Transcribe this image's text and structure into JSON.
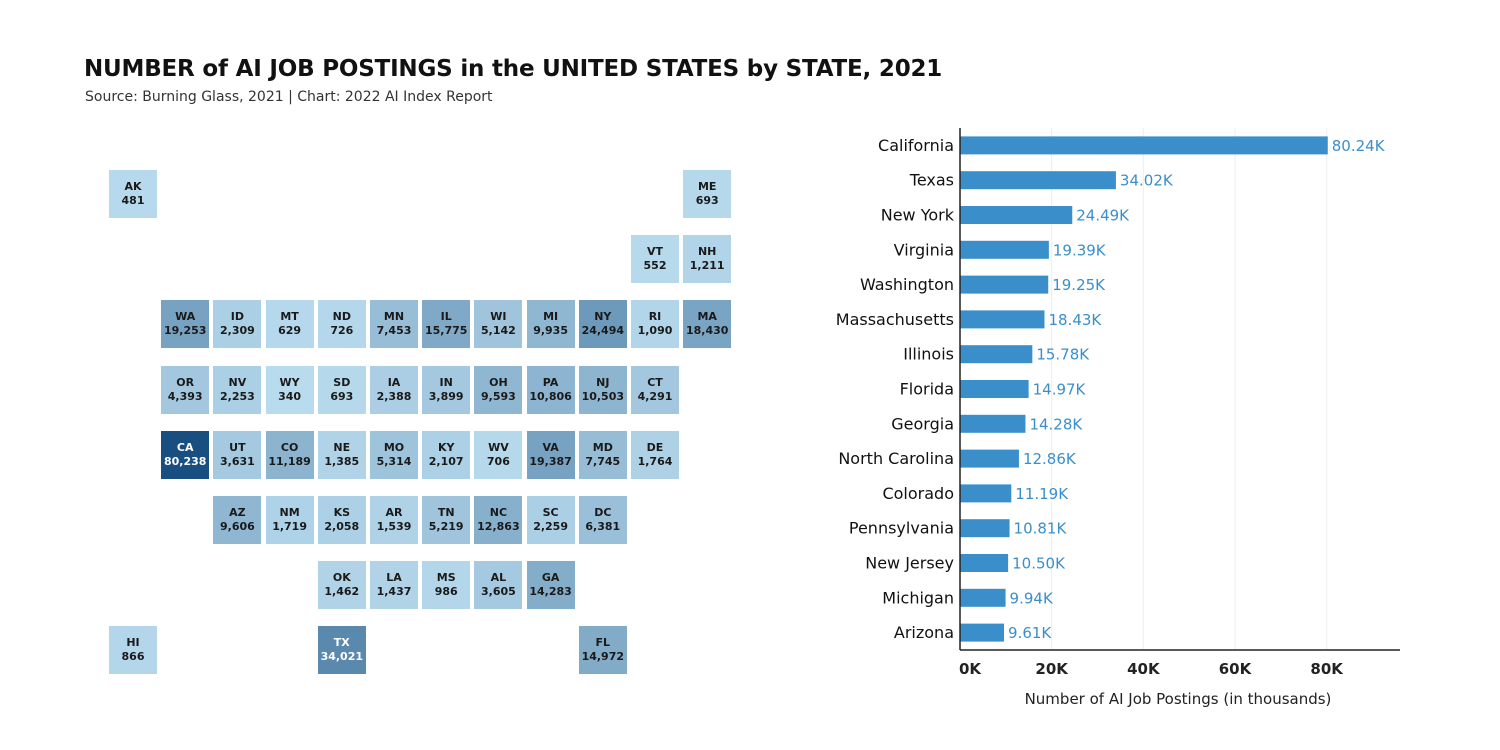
{
  "title": "NUMBER of AI JOB POSTINGS in the UNITED STATES by STATE, 2021",
  "subtitle": "Source: Burning Glass, 2021 | Chart: 2022 AI Index Report",
  "colors": {
    "bar": "#3a8fcb",
    "bar_label": "#3a8fcb",
    "tile_low": "#bfe0f2",
    "tile_high": "#184f80",
    "axis": "#222222",
    "grid": "#eeeeee"
  },
  "tile_map": [
    {
      "abbr": "AK",
      "value": 481,
      "display": "481",
      "row": 0,
      "col": 0
    },
    {
      "abbr": "ME",
      "value": 693,
      "display": "693",
      "row": 0,
      "col": 11
    },
    {
      "abbr": "VT",
      "value": 552,
      "display": "552",
      "row": 1,
      "col": 10
    },
    {
      "abbr": "NH",
      "value": 1211,
      "display": "1,211",
      "row": 1,
      "col": 11
    },
    {
      "abbr": "WA",
      "value": 19253,
      "display": "19,253",
      "row": 2,
      "col": 1
    },
    {
      "abbr": "ID",
      "value": 2309,
      "display": "2,309",
      "row": 2,
      "col": 2
    },
    {
      "abbr": "MT",
      "value": 629,
      "display": "629",
      "row": 2,
      "col": 3
    },
    {
      "abbr": "ND",
      "value": 726,
      "display": "726",
      "row": 2,
      "col": 4
    },
    {
      "abbr": "MN",
      "value": 7453,
      "display": "7,453",
      "row": 2,
      "col": 5
    },
    {
      "abbr": "IL",
      "value": 15775,
      "display": "15,775",
      "row": 2,
      "col": 6
    },
    {
      "abbr": "WI",
      "value": 5142,
      "display": "5,142",
      "row": 2,
      "col": 7
    },
    {
      "abbr": "MI",
      "value": 9935,
      "display": "9,935",
      "row": 2,
      "col": 8
    },
    {
      "abbr": "NY",
      "value": 24494,
      "display": "24,494",
      "row": 2,
      "col": 9
    },
    {
      "abbr": "RI",
      "value": 1090,
      "display": "1,090",
      "row": 2,
      "col": 10
    },
    {
      "abbr": "MA",
      "value": 18430,
      "display": "18,430",
      "row": 2,
      "col": 11
    },
    {
      "abbr": "OR",
      "value": 4393,
      "display": "4,393",
      "row": 3,
      "col": 1
    },
    {
      "abbr": "NV",
      "value": 2253,
      "display": "2,253",
      "row": 3,
      "col": 2
    },
    {
      "abbr": "WY",
      "value": 340,
      "display": "340",
      "row": 3,
      "col": 3
    },
    {
      "abbr": "SD",
      "value": 693,
      "display": "693",
      "row": 3,
      "col": 4
    },
    {
      "abbr": "IA",
      "value": 2388,
      "display": "2,388",
      "row": 3,
      "col": 5
    },
    {
      "abbr": "IN",
      "value": 3899,
      "display": "3,899",
      "row": 3,
      "col": 6
    },
    {
      "abbr": "OH",
      "value": 9593,
      "display": "9,593",
      "row": 3,
      "col": 7
    },
    {
      "abbr": "PA",
      "value": 10806,
      "display": "10,806",
      "row": 3,
      "col": 8
    },
    {
      "abbr": "NJ",
      "value": 10503,
      "display": "10,503",
      "row": 3,
      "col": 9
    },
    {
      "abbr": "CT",
      "value": 4291,
      "display": "4,291",
      "row": 3,
      "col": 10
    },
    {
      "abbr": "CA",
      "value": 80238,
      "display": "80,238",
      "row": 4,
      "col": 1
    },
    {
      "abbr": "UT",
      "value": 3631,
      "display": "3,631",
      "row": 4,
      "col": 2
    },
    {
      "abbr": "CO",
      "value": 11189,
      "display": "11,189",
      "row": 4,
      "col": 3
    },
    {
      "abbr": "NE",
      "value": 1385,
      "display": "1,385",
      "row": 4,
      "col": 4
    },
    {
      "abbr": "MO",
      "value": 5314,
      "display": "5,314",
      "row": 4,
      "col": 5
    },
    {
      "abbr": "KY",
      "value": 2107,
      "display": "2,107",
      "row": 4,
      "col": 6
    },
    {
      "abbr": "WV",
      "value": 706,
      "display": "706",
      "row": 4,
      "col": 7
    },
    {
      "abbr": "VA",
      "value": 19387,
      "display": "19,387",
      "row": 4,
      "col": 8
    },
    {
      "abbr": "MD",
      "value": 7745,
      "display": "7,745",
      "row": 4,
      "col": 9
    },
    {
      "abbr": "DE",
      "value": 1764,
      "display": "1,764",
      "row": 4,
      "col": 10
    },
    {
      "abbr": "AZ",
      "value": 9606,
      "display": "9,606",
      "row": 5,
      "col": 2
    },
    {
      "abbr": "NM",
      "value": 1719,
      "display": "1,719",
      "row": 5,
      "col": 3
    },
    {
      "abbr": "KS",
      "value": 2058,
      "display": "2,058",
      "row": 5,
      "col": 4
    },
    {
      "abbr": "AR",
      "value": 1539,
      "display": "1,539",
      "row": 5,
      "col": 5
    },
    {
      "abbr": "TN",
      "value": 5219,
      "display": "5,219",
      "row": 5,
      "col": 6
    },
    {
      "abbr": "NC",
      "value": 12863,
      "display": "12,863",
      "row": 5,
      "col": 7
    },
    {
      "abbr": "SC",
      "value": 2259,
      "display": "2,259",
      "row": 5,
      "col": 8
    },
    {
      "abbr": "DC",
      "value": 6381,
      "display": "6,381",
      "row": 5,
      "col": 9
    },
    {
      "abbr": "OK",
      "value": 1462,
      "display": "1,462",
      "row": 6,
      "col": 4
    },
    {
      "abbr": "LA",
      "value": 1437,
      "display": "1,437",
      "row": 6,
      "col": 5
    },
    {
      "abbr": "MS",
      "value": 986,
      "display": "986",
      "row": 6,
      "col": 6
    },
    {
      "abbr": "AL",
      "value": 3605,
      "display": "3,605",
      "row": 6,
      "col": 7
    },
    {
      "abbr": "GA",
      "value": 14283,
      "display": "14,283",
      "row": 6,
      "col": 8
    },
    {
      "abbr": "HI",
      "value": 866,
      "display": "866",
      "row": 7,
      "col": 0
    },
    {
      "abbr": "TX",
      "value": 34021,
      "display": "34,021",
      "row": 7,
      "col": 4
    },
    {
      "abbr": "FL",
      "value": 14972,
      "display": "14,972",
      "row": 7,
      "col": 9
    }
  ],
  "chart_data": {
    "type": "bar",
    "orientation": "horizontal",
    "categories": [
      "California",
      "Texas",
      "New York",
      "Virginia",
      "Washington",
      "Massachusetts",
      "Illinois",
      "Florida",
      "Georgia",
      "North Carolina",
      "Colorado",
      "Pennsylvania",
      "New Jersey",
      "Michigan",
      "Arizona"
    ],
    "values": [
      80.24,
      34.02,
      24.49,
      19.39,
      19.25,
      18.43,
      15.78,
      14.97,
      14.28,
      12.86,
      11.19,
      10.81,
      10.5,
      9.94,
      9.61
    ],
    "value_labels": [
      "80.24K",
      "34.02K",
      "24.49K",
      "19.39K",
      "19.25K",
      "18.43K",
      "15.78K",
      "14.97K",
      "14.28K",
      "12.86K",
      "11.19K",
      "10.81K",
      "10.50K",
      "9.94K",
      "9.61K"
    ],
    "xticks": [
      0,
      20,
      40,
      60,
      80
    ],
    "xtick_labels": [
      "0K",
      "20K",
      "40K",
      "60K",
      "80K"
    ],
    "xlim": [
      0,
      96
    ],
    "xlabel": "Number of AI Job Postings (in thousands)",
    "ylabel": "",
    "grid": "vertical"
  }
}
